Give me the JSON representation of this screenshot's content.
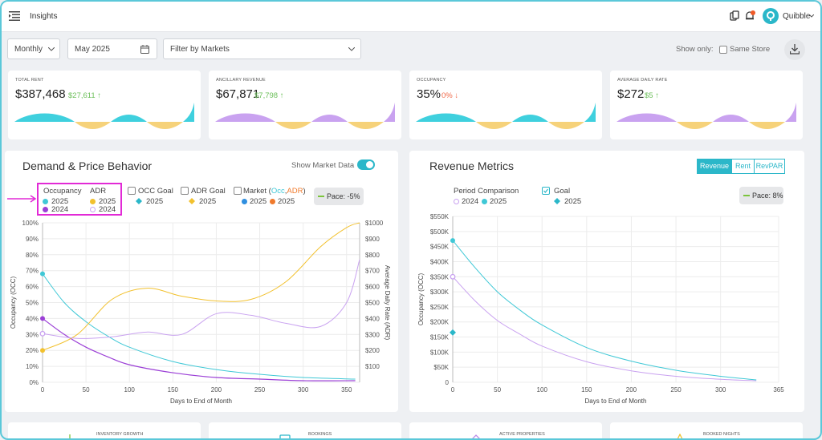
{
  "header": {
    "title": "Insights",
    "user_name": "Quibble",
    "icons": [
      "menu-icon",
      "copy-icon",
      "bell-icon",
      "user-avatar-icon",
      "chevron-down-icon"
    ]
  },
  "filters": {
    "period": "Monthly",
    "date": "May 2025",
    "markets_placeholder": "Filter by Markets",
    "show_only_label": "Show only:",
    "same_store_label": "Same Store",
    "same_store_checked": false
  },
  "kpis": [
    {
      "label": "TOTAL RENT",
      "value": "$387,468",
      "delta": "$27,611",
      "delta_dir": "up",
      "color": "#3fd0de"
    },
    {
      "label": "ANCILLARY REVENUE",
      "value": "$67,871",
      "delta": "$7,798",
      "delta_dir": "up",
      "color": "#b98ae8"
    },
    {
      "label": "OCCUPANCY",
      "value": "35%",
      "delta": "0%",
      "delta_dir": "down",
      "color": "#3fd0de"
    },
    {
      "label": "AVERAGE DAILY RATE",
      "value": "$272",
      "delta": "$5",
      "delta_dir": "up",
      "color": "#b98ae8"
    }
  ],
  "demand": {
    "title": "Demand & Price Behavior",
    "show_market_label": "Show Market Data",
    "show_market_on": true,
    "legend": {
      "occupancy": "Occupancy",
      "adr": "ADR",
      "y2025": "2025",
      "y2024": "2024",
      "occ_goal": "OCC Goal",
      "adr_goal": "ADR Goal",
      "market": "Market (",
      "market_occ": "Occ",
      "market_comma": ",",
      "market_adr": "ADR",
      "market_close": ")",
      "pace": "Pace: -5%"
    },
    "colors": {
      "occ2025": "#3fc8d6",
      "occ2024": "#9b3fd6",
      "adr2025": "#f2c12e",
      "adr2024": "#c9a2f0",
      "goal_occ": "#2bb7c9",
      "goal_adr": "#f2c12e",
      "market_occ": "#2f8fe0",
      "market_adr": "#f07a2c"
    }
  },
  "revenue": {
    "title": "Revenue Metrics",
    "tabs": [
      "Revenue",
      "Rent",
      "RevPAR"
    ],
    "active_tab": "Revenue",
    "legend": {
      "period": "Period Comparison",
      "goal": "Goal",
      "y2024": "2024",
      "y2025": "2025",
      "pace": "Pace: 8%"
    }
  },
  "chart_data": [
    {
      "type": "line",
      "xlabel": "Days to End of Month",
      "ylabel": "Occupancy (OCC)",
      "y2label": "Average Daily Rate (ADR)",
      "xlim": [
        0,
        365
      ],
      "ylim": [
        0,
        100
      ],
      "y2lim": [
        0,
        1000
      ],
      "x_ticks": [
        0,
        50,
        100,
        150,
        200,
        250,
        300,
        350
      ],
      "y_ticks": [
        "0%",
        "10%",
        "20%",
        "30%",
        "40%",
        "50%",
        "60%",
        "70%",
        "80%",
        "90%",
        "100%"
      ],
      "y2_ticks": [
        "$100",
        "$200",
        "$300",
        "$400",
        "$500",
        "$600",
        "$700",
        "$800",
        "$900",
        "$1000"
      ],
      "series": [
        {
          "name": "Occupancy 2025",
          "axis": "left",
          "points": [
            [
              0,
              68
            ],
            [
              25,
              50
            ],
            [
              50,
              38
            ],
            [
              75,
              29
            ],
            [
              100,
              22
            ],
            [
              150,
              13
            ],
            [
              200,
              8
            ],
            [
              250,
              5
            ],
            [
              300,
              3
            ],
            [
              360,
              2
            ]
          ]
        },
        {
          "name": "Occupancy 2024",
          "axis": "left",
          "points": [
            [
              0,
              40
            ],
            [
              25,
              30
            ],
            [
              50,
              22
            ],
            [
              75,
              16
            ],
            [
              100,
              11
            ],
            [
              150,
              6
            ],
            [
              200,
              3
            ],
            [
              250,
              2
            ],
            [
              300,
              1
            ],
            [
              360,
              1
            ]
          ]
        },
        {
          "name": "ADR 2025",
          "axis": "right",
          "points": [
            [
              0,
              200
            ],
            [
              40,
              300
            ],
            [
              80,
              520
            ],
            [
              120,
              590
            ],
            [
              160,
              540
            ],
            [
              200,
              510
            ],
            [
              240,
              520
            ],
            [
              280,
              630
            ],
            [
              320,
              850
            ],
            [
              350,
              970
            ],
            [
              365,
              1000
            ]
          ]
        },
        {
          "name": "ADR 2024",
          "axis": "right",
          "points": [
            [
              0,
              305
            ],
            [
              40,
              275
            ],
            [
              80,
              285
            ],
            [
              120,
              315
            ],
            [
              160,
              300
            ],
            [
              200,
              430
            ],
            [
              240,
              420
            ],
            [
              280,
              370
            ],
            [
              320,
              350
            ],
            [
              350,
              500
            ],
            [
              365,
              770
            ]
          ]
        }
      ]
    },
    {
      "type": "line",
      "xlabel": "Days to End of Month",
      "ylabel": "Occupancy (OCC)",
      "xlim": [
        0,
        365
      ],
      "ylim": [
        0,
        550000
      ],
      "x_ticks": [
        0,
        50,
        100,
        150,
        200,
        250,
        300,
        365
      ],
      "y_ticks": [
        "0",
        "$50K",
        "$100K",
        "$150K",
        "$200K",
        "$250K",
        "$300K",
        "$350K",
        "$400K",
        "$450K",
        "$500K",
        "$550K"
      ],
      "series": [
        {
          "name": "2025",
          "points": [
            [
              0,
              470000
            ],
            [
              25,
              380000
            ],
            [
              50,
              300000
            ],
            [
              75,
              240000
            ],
            [
              100,
              190000
            ],
            [
              150,
              115000
            ],
            [
              200,
              70000
            ],
            [
              250,
              40000
            ],
            [
              300,
              20000
            ],
            [
              340,
              8000
            ]
          ]
        },
        {
          "name": "2024",
          "points": [
            [
              0,
              350000
            ],
            [
              25,
              270000
            ],
            [
              50,
              205000
            ],
            [
              75,
              160000
            ],
            [
              100,
              120000
            ],
            [
              150,
              68000
            ],
            [
              200,
              38000
            ],
            [
              250,
              20000
            ],
            [
              300,
              10000
            ],
            [
              340,
              5000
            ]
          ]
        },
        {
          "name": "Goal 2025",
          "points": [
            [
              0,
              165000
            ]
          ]
        }
      ]
    }
  ],
  "bottom_cards": [
    {
      "label": "INVENTORY GROWTH"
    },
    {
      "label": "BOOKINGS"
    },
    {
      "label": "ACTIVE PROPERTIES"
    },
    {
      "label": "BOOKED NIGHTS"
    }
  ]
}
